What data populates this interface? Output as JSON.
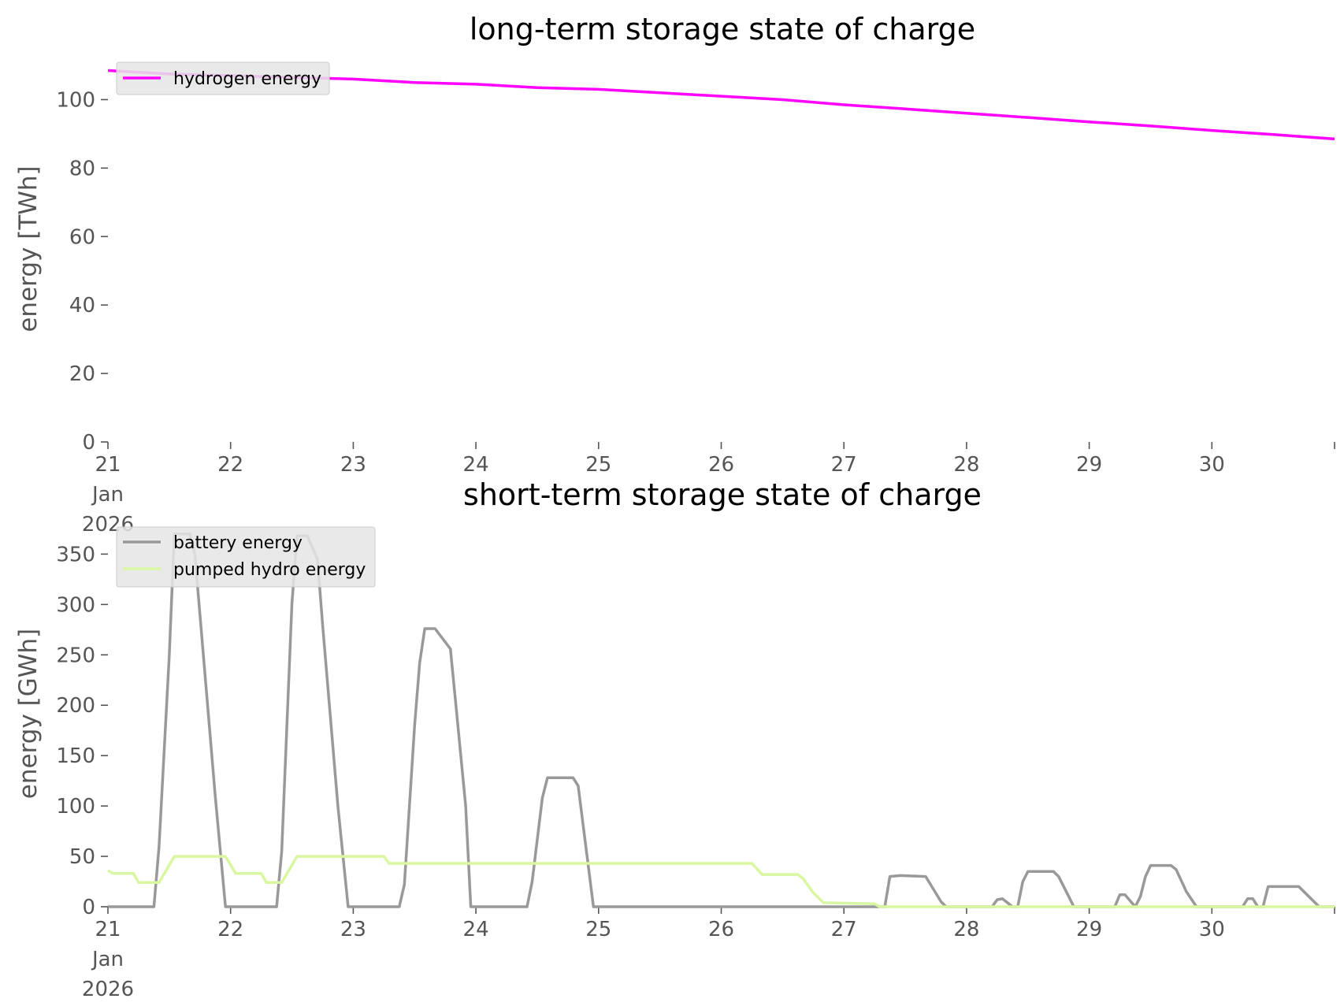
{
  "chart_data": [
    {
      "type": "line",
      "title": "long-term storage state of charge",
      "ylabel": "energy [TWh]",
      "xlabel": "",
      "xlim": [
        "2026-01-21",
        "2026-01-31"
      ],
      "ylim": [
        0,
        110
      ],
      "grid": false,
      "legend_position": "top-left",
      "yticks": [
        0,
        20,
        40,
        60,
        80,
        100
      ],
      "xticks": [
        {
          "date": "2026-01-21",
          "label": [
            "21",
            "Jan",
            "2026"
          ]
        },
        {
          "date": "2026-01-22",
          "label": [
            "22"
          ]
        },
        {
          "date": "2026-01-23",
          "label": [
            "23"
          ]
        },
        {
          "date": "2026-01-24",
          "label": [
            "24"
          ]
        },
        {
          "date": "2026-01-25",
          "label": [
            "25"
          ]
        },
        {
          "date": "2026-01-26",
          "label": [
            "26"
          ]
        },
        {
          "date": "2026-01-27",
          "label": [
            "27"
          ]
        },
        {
          "date": "2026-01-28",
          "label": [
            "28"
          ]
        },
        {
          "date": "2026-01-29",
          "label": [
            "29"
          ]
        },
        {
          "date": "2026-01-30",
          "label": [
            "30"
          ]
        }
      ],
      "series": [
        {
          "name": "hydrogen energy",
          "color": "#ff00ff",
          "points": [
            [
              "2026-01-21 00:00",
              108.5
            ],
            [
              "2026-01-21 12:00",
              107.5
            ],
            [
              "2026-01-22 00:00",
              107.0
            ],
            [
              "2026-01-22 12:00",
              106.5
            ],
            [
              "2026-01-23 00:00",
              106.0
            ],
            [
              "2026-01-23 12:00",
              105.0
            ],
            [
              "2026-01-24 00:00",
              104.5
            ],
            [
              "2026-01-24 12:00",
              103.5
            ],
            [
              "2026-01-25 00:00",
              103.0
            ],
            [
              "2026-01-25 12:00",
              102.0
            ],
            [
              "2026-01-26 00:00",
              101.0
            ],
            [
              "2026-01-26 12:00",
              100.0
            ],
            [
              "2026-01-27 00:00",
              98.5
            ],
            [
              "2026-01-27 12:00",
              97.3
            ],
            [
              "2026-01-28 00:00",
              96.0
            ],
            [
              "2026-01-28 12:00",
              94.8
            ],
            [
              "2026-01-29 00:00",
              93.5
            ],
            [
              "2026-01-29 12:00",
              92.3
            ],
            [
              "2026-01-30 00:00",
              91.0
            ],
            [
              "2026-01-30 12:00",
              89.8
            ],
            [
              "2026-01-31 00:00",
              88.5
            ]
          ]
        }
      ]
    },
    {
      "type": "line",
      "title": "short-term storage state of charge",
      "ylabel": "energy [GWh]",
      "xlabel": "",
      "xlim": [
        "2026-01-21",
        "2026-01-31"
      ],
      "ylim": [
        0,
        380
      ],
      "grid": false,
      "legend_position": "top-left",
      "yticks": [
        0,
        50,
        100,
        150,
        200,
        250,
        300,
        350
      ],
      "xticks": [
        {
          "date": "2026-01-21",
          "label": [
            "21",
            "Jan",
            "2026"
          ]
        },
        {
          "date": "2026-01-22",
          "label": [
            "22"
          ]
        },
        {
          "date": "2026-01-23",
          "label": [
            "23"
          ]
        },
        {
          "date": "2026-01-24",
          "label": [
            "24"
          ]
        },
        {
          "date": "2026-01-25",
          "label": [
            "25"
          ]
        },
        {
          "date": "2026-01-26",
          "label": [
            "26"
          ]
        },
        {
          "date": "2026-01-27",
          "label": [
            "27"
          ]
        },
        {
          "date": "2026-01-28",
          "label": [
            "28"
          ]
        },
        {
          "date": "2026-01-29",
          "label": [
            "29"
          ]
        },
        {
          "date": "2026-01-30",
          "label": [
            "30"
          ]
        }
      ],
      "series": [
        {
          "name": "battery energy",
          "color": "#999999",
          "points": [
            [
              "2026-01-21 00:00",
              0
            ],
            [
              "2026-01-21 09:00",
              0
            ],
            [
              "2026-01-21 10:00",
              60
            ],
            [
              "2026-01-21 12:00",
              250
            ],
            [
              "2026-01-21 13:00",
              370
            ],
            [
              "2026-01-21 16:00",
              370
            ],
            [
              "2026-01-21 17:00",
              350
            ],
            [
              "2026-01-21 18:00",
              290
            ],
            [
              "2026-01-21 21:00",
              110
            ],
            [
              "2026-01-21 23:00",
              0
            ],
            [
              "2026-01-22 09:00",
              0
            ],
            [
              "2026-01-22 10:00",
              55
            ],
            [
              "2026-01-22 12:00",
              300
            ],
            [
              "2026-01-22 13:00",
              368
            ],
            [
              "2026-01-22 15:00",
              368
            ],
            [
              "2026-01-22 17:00",
              345
            ],
            [
              "2026-01-22 18:00",
              280
            ],
            [
              "2026-01-22 21:00",
              100
            ],
            [
              "2026-01-22 23:00",
              0
            ],
            [
              "2026-01-23 09:00",
              0
            ],
            [
              "2026-01-23 10:00",
              22
            ],
            [
              "2026-01-23 12:00",
              180
            ],
            [
              "2026-01-23 13:00",
              242
            ],
            [
              "2026-01-23 14:00",
              276
            ],
            [
              "2026-01-23 16:00",
              276
            ],
            [
              "2026-01-23 19:00",
              256
            ],
            [
              "2026-01-23 20:00",
              205
            ],
            [
              "2026-01-23 22:00",
              100
            ],
            [
              "2026-01-23 23:00",
              0
            ],
            [
              "2026-01-24 10:00",
              0
            ],
            [
              "2026-01-24 11:00",
              25
            ],
            [
              "2026-01-24 13:00",
              108
            ],
            [
              "2026-01-24 14:00",
              128
            ],
            [
              "2026-01-24 19:00",
              128
            ],
            [
              "2026-01-24 20:00",
              120
            ],
            [
              "2026-01-24 23:00",
              0
            ],
            [
              "2026-01-27 08:00",
              0
            ],
            [
              "2026-01-27 09:00",
              30
            ],
            [
              "2026-01-27 11:00",
              31
            ],
            [
              "2026-01-27 16:00",
              30
            ],
            [
              "2026-01-27 19:00",
              5
            ],
            [
              "2026-01-27 20:00",
              0
            ],
            [
              "2026-01-28 05:00",
              0
            ],
            [
              "2026-01-28 06:00",
              7
            ],
            [
              "2026-01-28 07:00",
              8
            ],
            [
              "2026-01-28 09:00",
              0
            ],
            [
              "2026-01-28 10:00",
              0
            ],
            [
              "2026-01-28 11:00",
              25
            ],
            [
              "2026-01-28 12:00",
              35
            ],
            [
              "2026-01-28 17:00",
              35
            ],
            [
              "2026-01-28 18:00",
              30
            ],
            [
              "2026-01-28 20:00",
              10
            ],
            [
              "2026-01-28 21:00",
              0
            ],
            [
              "2026-01-29 05:00",
              0
            ],
            [
              "2026-01-29 06:00",
              12
            ],
            [
              "2026-01-29 07:00",
              12
            ],
            [
              "2026-01-29 09:00",
              0
            ],
            [
              "2026-01-29 10:00",
              10
            ],
            [
              "2026-01-29 11:00",
              30
            ],
            [
              "2026-01-29 12:00",
              41
            ],
            [
              "2026-01-29 16:00",
              41
            ],
            [
              "2026-01-29 17:00",
              37
            ],
            [
              "2026-01-29 19:00",
              15
            ],
            [
              "2026-01-29 21:00",
              0
            ],
            [
              "2026-01-30 06:00",
              0
            ],
            [
              "2026-01-30 07:00",
              8
            ],
            [
              "2026-01-30 08:00",
              8
            ],
            [
              "2026-01-30 09:00",
              0
            ],
            [
              "2026-01-30 10:00",
              0
            ],
            [
              "2026-01-30 11:00",
              20
            ],
            [
              "2026-01-30 17:00",
              20
            ],
            [
              "2026-01-30 21:00",
              0
            ],
            [
              "2026-01-31 00:00",
              0
            ]
          ]
        },
        {
          "name": "pumped hydro energy",
          "color": "#d9f7a0",
          "points": [
            [
              "2026-01-21 00:00",
              36
            ],
            [
              "2026-01-21 01:00",
              33
            ],
            [
              "2026-01-21 05:00",
              33
            ],
            [
              "2026-01-21 06:00",
              24
            ],
            [
              "2026-01-21 10:00",
              24
            ],
            [
              "2026-01-21 13:00",
              50
            ],
            [
              "2026-01-21 23:00",
              50
            ],
            [
              "2026-01-22 01:00",
              33
            ],
            [
              "2026-01-22 06:00",
              33
            ],
            [
              "2026-01-22 07:00",
              24
            ],
            [
              "2026-01-22 10:00",
              24
            ],
            [
              "2026-01-22 13:00",
              50
            ],
            [
              "2026-01-23 06:00",
              50
            ],
            [
              "2026-01-23 07:00",
              43
            ],
            [
              "2026-01-26 06:00",
              43
            ],
            [
              "2026-01-26 08:00",
              32
            ],
            [
              "2026-01-26 15:00",
              32
            ],
            [
              "2026-01-26 16:00",
              28
            ],
            [
              "2026-01-26 18:00",
              14
            ],
            [
              "2026-01-26 20:00",
              4
            ],
            [
              "2026-01-27 06:00",
              3
            ],
            [
              "2026-01-27 07:00",
              0
            ],
            [
              "2026-01-31 00:00",
              0
            ]
          ]
        }
      ]
    }
  ]
}
